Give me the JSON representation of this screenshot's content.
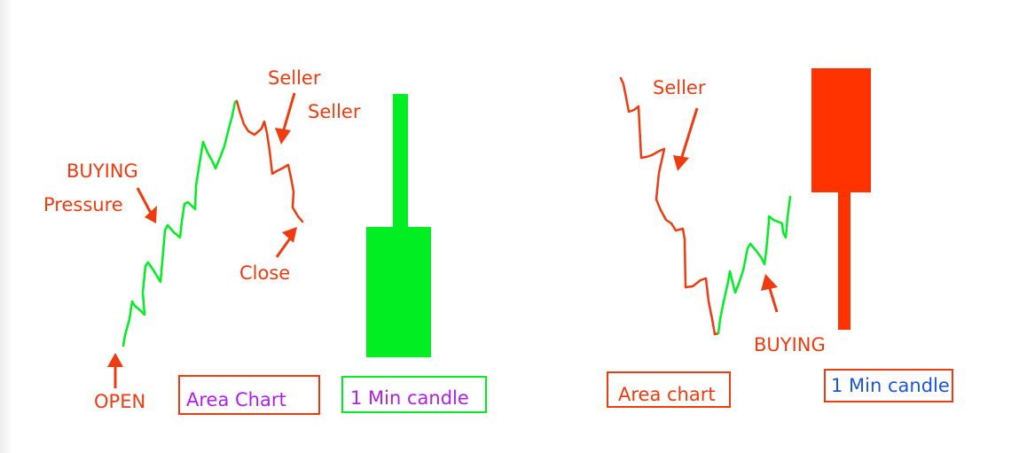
{
  "colors": {
    "bull": "#00ee22",
    "bear": "#ff3300",
    "label": "#ee3b10",
    "purple": "#b020e8",
    "blue": "#1a55dd",
    "box_red": "#ee3b10",
    "box_green": "#00ee22"
  },
  "left_panel": {
    "labels": {
      "seller_1": "Seller",
      "seller_2": "Seller",
      "buying": "BUYING",
      "pressure": "Pressure",
      "close": "Close",
      "open": "OPEN"
    },
    "area_chart_box": "Area Chart",
    "candle_box": "1 Min candle",
    "candle": {
      "direction": "bullish"
    }
  },
  "right_panel": {
    "labels": {
      "seller": "Seller",
      "buying": "BUYING"
    },
    "area_chart_box": "Area chart",
    "candle_box": "1 Min candle",
    "candle": {
      "direction": "bearish"
    }
  }
}
